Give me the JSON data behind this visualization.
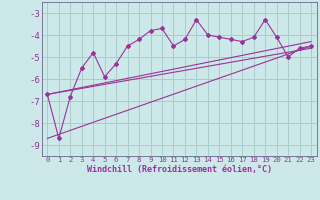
{
  "xlabel": "Windchill (Refroidissement éolien,°C)",
  "bg_color": "#cce8e8",
  "grid_color": "#aacccc",
  "line_color": "#993399",
  "ylim": [
    -9.5,
    -2.5
  ],
  "xlim": [
    -0.5,
    23.5
  ],
  "yticks": [
    -9,
    -8,
    -7,
    -6,
    -5,
    -4,
    -3
  ],
  "xticks": [
    0,
    1,
    2,
    3,
    4,
    5,
    6,
    7,
    8,
    9,
    10,
    11,
    12,
    13,
    14,
    15,
    16,
    17,
    18,
    19,
    20,
    21,
    22,
    23
  ],
  "scatter_x": [
    0,
    1,
    2,
    3,
    4,
    5,
    6,
    7,
    8,
    9,
    10,
    11,
    12,
    13,
    14,
    15,
    16,
    17,
    18,
    19,
    20,
    21,
    22,
    23
  ],
  "scatter_y": [
    -6.7,
    -8.7,
    -6.8,
    -5.5,
    -4.8,
    -5.9,
    -5.3,
    -4.5,
    -4.2,
    -3.8,
    -3.7,
    -4.5,
    -4.2,
    -3.3,
    -4.0,
    -4.1,
    -4.2,
    -4.3,
    -4.1,
    -3.3,
    -4.1,
    -5.0,
    -4.6,
    -4.5
  ],
  "line1_x": [
    0,
    23
  ],
  "line1_y": [
    -6.7,
    -4.3
  ],
  "line2_x": [
    0,
    23
  ],
  "line2_y": [
    -6.7,
    -4.6
  ],
  "line3_x": [
    0,
    23
  ],
  "line3_y": [
    -8.7,
    -4.5
  ]
}
